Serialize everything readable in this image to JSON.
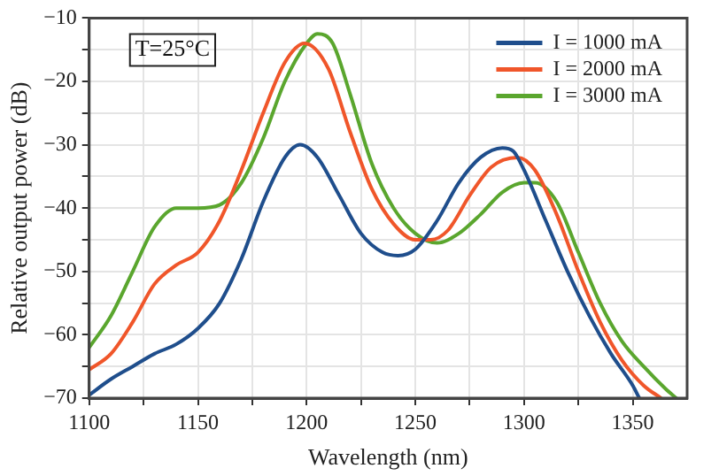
{
  "chart_data": {
    "type": "line",
    "xlabel": "Wavelength (nm)",
    "ylabel": "Relative output power (dB)",
    "xlim": [
      1100,
      1375
    ],
    "ylim": [
      -70,
      -10
    ],
    "xticks": [
      1100,
      {
        "value": 1125,
        "label": null
      },
      1150,
      {
        "value": 1175,
        "label": null
      },
      1200,
      {
        "value": 1225,
        "label": null
      },
      1250,
      {
        "value": 1275,
        "label": null
      },
      1300,
      {
        "value": 1325,
        "label": null
      },
      1350
    ],
    "yticks": [
      -70,
      {
        "value": -65,
        "label": null
      },
      -60,
      {
        "value": -55,
        "label": null
      },
      -50,
      {
        "value": -45,
        "label": null
      },
      -40,
      {
        "value": -35,
        "label": null
      },
      -30,
      {
        "value": -25,
        "label": null
      },
      -20,
      {
        "value": -15,
        "label": null
      },
      -10
    ],
    "grid": true,
    "legend": "top right",
    "marker": "none",
    "line_style": "solid",
    "annotations": [
      "T=25°C"
    ],
    "series": [
      {
        "name": "I = 1000 mA",
        "color": "#1f4e8c",
        "x": [
          1100,
          1110,
          1120,
          1130,
          1140,
          1150,
          1160,
          1170,
          1180,
          1190,
          1197,
          1205,
          1215,
          1225,
          1235,
          1242,
          1250,
          1260,
          1270,
          1280,
          1290,
          1295,
          1300,
          1310,
          1320,
          1330,
          1340,
          1350,
          1353
        ],
        "values": [
          -69.5,
          -67,
          -65,
          -63,
          -61.5,
          -59,
          -55,
          -48,
          -39,
          -32,
          -30,
          -32,
          -38,
          -44,
          -47,
          -47.5,
          -46.5,
          -42,
          -36,
          -32,
          -30.5,
          -31,
          -34,
          -42,
          -50,
          -57,
          -63,
          -68,
          -70
        ]
      },
      {
        "name": "I = 2000 mA",
        "color": "#f0562a",
        "x": [
          1100,
          1110,
          1120,
          1130,
          1140,
          1150,
          1160,
          1170,
          1180,
          1190,
          1199,
          1210,
          1220,
          1230,
          1240,
          1250,
          1257,
          1265,
          1275,
          1285,
          1297,
          1305,
          1315,
          1325,
          1335,
          1345,
          1355,
          1363
        ],
        "values": [
          -65.5,
          -63,
          -58,
          -52,
          -49,
          -47,
          -42,
          -34,
          -25,
          -17,
          -14,
          -18,
          -28,
          -37,
          -42.5,
          -45,
          -45,
          -43.5,
          -38,
          -33.5,
          -32,
          -34,
          -41,
          -50,
          -58,
          -64,
          -68,
          -70
        ]
      },
      {
        "name": "I = 3000 mA",
        "color": "#5aa62e",
        "x": [
          1100,
          1110,
          1120,
          1130,
          1140,
          1150,
          1160,
          1170,
          1180,
          1190,
          1200,
          1205,
          1212,
          1220,
          1230,
          1240,
          1250,
          1260,
          1270,
          1280,
          1290,
          1300,
          1305,
          1315,
          1325,
          1335,
          1345,
          1355,
          1365,
          1370
        ],
        "values": [
          -62,
          -57,
          -50,
          -43,
          -40,
          -40,
          -39.5,
          -36,
          -29,
          -20,
          -14,
          -12.5,
          -14,
          -22,
          -33,
          -40,
          -44,
          -45.5,
          -44,
          -41,
          -37.5,
          -36,
          -36,
          -39,
          -47,
          -55,
          -61,
          -65,
          -68.5,
          -70
        ]
      }
    ]
  }
}
